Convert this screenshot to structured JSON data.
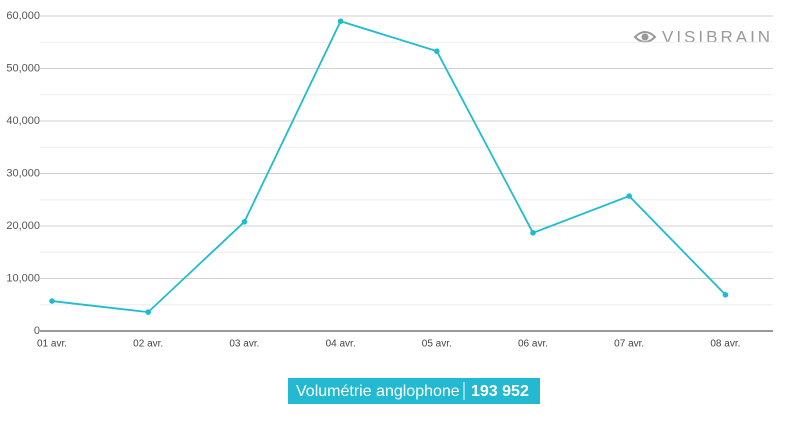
{
  "chart_data": {
    "type": "line",
    "categories": [
      "01 avr.",
      "02 avr.",
      "03 avr.",
      "04 avr.",
      "05 avr.",
      "06 avr.",
      "07 avr.",
      "08 avr."
    ],
    "series": [
      {
        "name": "Volumétrie anglophone",
        "color": "#1fbccf",
        "values": [
          5700,
          3600,
          20800,
          59000,
          53300,
          18700,
          25700,
          6900
        ]
      }
    ],
    "ylim": [
      0,
      60000
    ],
    "yticks": [
      0,
      {
        "value": 10000,
        "label": "10,000"
      },
      {
        "value": 20000,
        "label": "20,000"
      },
      {
        "value": 30000,
        "label": "30,000"
      },
      {
        "value": 40000,
        "label": "40,000"
      },
      {
        "value": 50000,
        "label": "50,000"
      },
      {
        "value": 60000,
        "label": "60,000"
      }
    ],
    "grid": true,
    "total": {
      "label": "Volumétrie anglophone",
      "value": "193 952"
    },
    "logo": "VISIBRAIN"
  }
}
